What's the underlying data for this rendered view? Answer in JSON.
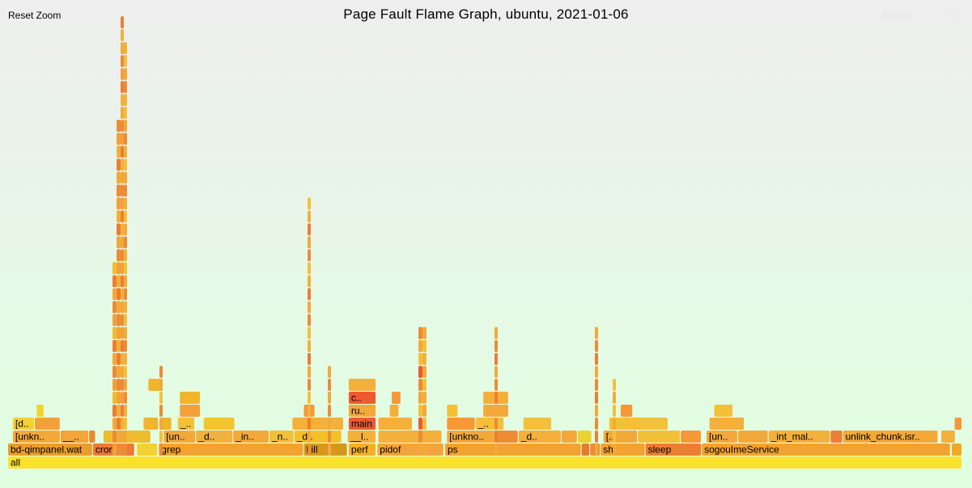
{
  "header": {
    "title": "Page Fault Flame Graph, ubuntu, 2021-01-06",
    "reset_zoom": "Reset Zoom",
    "search": "Search",
    "ic": "ic"
  },
  "chart_data": {
    "type": "flame graph",
    "title": "Page Fault Flame Graph, ubuntu, 2021-01-06",
    "levels_note": "depth 0 = bottom (all)",
    "frames": [
      {
        "name": "all",
        "depth": 0,
        "start": 0,
        "end": 1000,
        "color": "#fae12e"
      },
      {
        "name": "bd-qimpanel.watcher",
        "label": "bd-qimpanel.wat",
        "depth": 1,
        "start": 0,
        "end": 89,
        "color": "#e99d2c"
      },
      {
        "name": "cron",
        "depth": 1,
        "start": 89,
        "end": 133,
        "color": "#f07737"
      },
      {
        "name": "",
        "depth": 1,
        "start": 135,
        "end": 157,
        "color": "#f3d132"
      },
      {
        "name": "grep",
        "depth": 1,
        "start": 158,
        "end": 310,
        "color": "#f1a22f"
      },
      {
        "name": "kill",
        "depth": 1,
        "start": 310,
        "end": 356,
        "color": "#d6981a"
      },
      {
        "name": "perf",
        "depth": 1,
        "start": 357,
        "end": 386,
        "color": "#f5b025"
      },
      {
        "name": "pidof",
        "depth": 1,
        "start": 387,
        "end": 457,
        "color": "#f3a43a"
      },
      {
        "name": "ps",
        "depth": 1,
        "start": 458,
        "end": 601,
        "color": "#f1a22f"
      },
      {
        "name": "",
        "depth": 1,
        "start": 601,
        "end": 610,
        "color": "#e67a31"
      },
      {
        "name": "",
        "depth": 1,
        "start": 610,
        "end": 621,
        "color": "#ec8c36"
      },
      {
        "name": "sh",
        "depth": 1,
        "start": 621,
        "end": 668,
        "color": "#f1a22f"
      },
      {
        "name": "sleep",
        "depth": 1,
        "start": 668,
        "end": 727,
        "color": "#ec7e33"
      },
      {
        "name": "sogouImeService",
        "depth": 1,
        "start": 727,
        "end": 988,
        "color": "#f1a22f"
      },
      {
        "name": "",
        "depth": 1,
        "start": 989,
        "end": 1000,
        "color": "#eeaa22"
      },
      {
        "name": "[unknown]",
        "label": "[unkn..",
        "depth": 2,
        "start": 5,
        "end": 55,
        "color": "#f3a93a"
      },
      {
        "name": "__d",
        "label": "__..",
        "depth": 2,
        "start": 55,
        "end": 85,
        "color": "#f3a43a"
      },
      {
        "name": "",
        "depth": 2,
        "start": 85,
        "end": 92,
        "color": "#e88a30"
      },
      {
        "name": "",
        "depth": 2,
        "start": 100,
        "end": 150,
        "color": "#eebc2f"
      },
      {
        "name": "[unknown]",
        "label": "[un..",
        "depth": 2,
        "start": 163,
        "end": 197,
        "color": "#f3a93a"
      },
      {
        "name": "__d",
        "label": "_d..",
        "depth": 2,
        "start": 197,
        "end": 236,
        "color": "#f1b13d"
      },
      {
        "name": "__in",
        "label": "_in..",
        "depth": 2,
        "start": 236,
        "end": 274,
        "color": "#f3a93a"
      },
      {
        "name": "__n",
        "label": "_n..",
        "depth": 2,
        "start": 274,
        "end": 300,
        "color": "#f3c03a"
      },
      {
        "name": "__d",
        "label": "_d..",
        "depth": 2,
        "start": 300,
        "end": 350,
        "color": "#f3c02a"
      },
      {
        "name": "__l",
        "label": "__l..",
        "depth": 2,
        "start": 356,
        "end": 386,
        "color": "#f3b03a"
      },
      {
        "name": "",
        "depth": 2,
        "start": 388,
        "end": 455,
        "color": "#f3b03a"
      },
      {
        "name": "[unknown]",
        "label": "[unkno..",
        "depth": 2,
        "start": 460,
        "end": 512,
        "color": "#f3a93a"
      },
      {
        "name": "",
        "depth": 2,
        "start": 512,
        "end": 535,
        "color": "#ee8c36"
      },
      {
        "name": "__d",
        "label": "_d..",
        "depth": 2,
        "start": 535,
        "end": 580,
        "color": "#f3b03a"
      },
      {
        "name": "",
        "depth": 2,
        "start": 580,
        "end": 597,
        "color": "#f3a93a"
      },
      {
        "name": "",
        "depth": 2,
        "start": 597,
        "end": 612,
        "color": "#e9d330"
      },
      {
        "name": "[unknown]",
        "label": "[..",
        "depth": 2,
        "start": 624,
        "end": 660,
        "color": "#f3a93a"
      },
      {
        "name": "",
        "depth": 2,
        "start": 660,
        "end": 705,
        "color": "#f3c03a"
      },
      {
        "name": "",
        "depth": 2,
        "start": 705,
        "end": 727,
        "color": "#f49838"
      },
      {
        "name": "[unknown]",
        "label": "[un..",
        "depth": 2,
        "start": 732,
        "end": 765,
        "color": "#f3a93a"
      },
      {
        "name": "",
        "depth": 2,
        "start": 765,
        "end": 797,
        "color": "#f3a93a"
      },
      {
        "name": "_int_malloc",
        "label": "_int_mal..",
        "depth": 2,
        "start": 797,
        "end": 862,
        "color": "#f3b03a"
      },
      {
        "name": "",
        "depth": 2,
        "start": 862,
        "end": 875,
        "color": "#ec7e33"
      },
      {
        "name": "unlink_chunk.isra.0",
        "label": "unlink_chunk.isr..",
        "depth": 2,
        "start": 875,
        "end": 975,
        "color": "#f3a93a"
      },
      {
        "name": "",
        "depth": 2,
        "start": 978,
        "end": 993,
        "color": "#f3b03a"
      },
      {
        "name": "[d",
        "label": "[d..",
        "depth": 3,
        "start": 5,
        "end": 28,
        "color": "#f4d22f"
      },
      {
        "name": "",
        "depth": 3,
        "start": 28,
        "end": 55,
        "color": "#f4a03a"
      },
      {
        "name": "[unknown]",
        "label": "[..",
        "depth": 3,
        "start": 142,
        "end": 158,
        "color": "#f0b52a"
      },
      {
        "name": "",
        "depth": 3,
        "start": 160,
        "end": 172,
        "color": "#f0b52a"
      },
      {
        "name": "__d",
        "label": "_..",
        "depth": 3,
        "start": 178,
        "end": 196,
        "color": "#f3c03a"
      },
      {
        "name": "",
        "depth": 3,
        "start": 205,
        "end": 238,
        "color": "#f4c52f"
      },
      {
        "name": "",
        "depth": 3,
        "start": 298,
        "end": 352,
        "color": "#f3b03a"
      },
      {
        "name": "main",
        "depth": 3,
        "start": 357,
        "end": 386,
        "color": "#ec5a34"
      },
      {
        "name": "",
        "depth": 3,
        "start": 388,
        "end": 424,
        "color": "#f3b03a"
      },
      {
        "name": "",
        "depth": 3,
        "start": 460,
        "end": 490,
        "color": "#f49838"
      },
      {
        "name": "_",
        "label": "_..",
        "depth": 3,
        "start": 490,
        "end": 520,
        "color": "#f3c03a"
      },
      {
        "name": "",
        "depth": 3,
        "start": 540,
        "end": 570,
        "color": "#f3c03a"
      },
      {
        "name": "",
        "depth": 3,
        "start": 630,
        "end": 692,
        "color": "#f3c03a"
      },
      {
        "name": "",
        "depth": 3,
        "start": 735,
        "end": 772,
        "color": "#f3b03a"
      },
      {
        "name": "",
        "depth": 3,
        "start": 992,
        "end": 1000,
        "color": "#f49838"
      },
      {
        "name": "",
        "depth": 4,
        "start": 30,
        "end": 38,
        "color": "#f4d22f"
      },
      {
        "name": "",
        "depth": 4,
        "start": 180,
        "end": 202,
        "color": "#f4a03a"
      },
      {
        "name": "",
        "depth": 4,
        "start": 310,
        "end": 322,
        "color": "#f49838"
      },
      {
        "name": "ru",
        "label": "ru..",
        "depth": 4,
        "start": 357,
        "end": 386,
        "color": "#f3a93a"
      },
      {
        "name": "",
        "depth": 4,
        "start": 400,
        "end": 410,
        "color": "#f3b03a"
      },
      {
        "name": "",
        "depth": 4,
        "start": 460,
        "end": 472,
        "color": "#f3c03a"
      },
      {
        "name": "",
        "depth": 4,
        "start": 498,
        "end": 525,
        "color": "#f3a93a"
      },
      {
        "name": "",
        "depth": 4,
        "start": 642,
        "end": 655,
        "color": "#f49838"
      },
      {
        "name": "",
        "depth": 4,
        "start": 740,
        "end": 760,
        "color": "#f3c03a"
      },
      {
        "name": "c",
        "label": "c..",
        "depth": 5,
        "start": 357,
        "end": 386,
        "color": "#f05a30"
      },
      {
        "name": "",
        "depth": 5,
        "start": 498,
        "end": 525,
        "color": "#f3b03a"
      },
      {
        "name": "",
        "depth": 5,
        "start": 180,
        "end": 202,
        "color": "#f0b52a"
      },
      {
        "name": "",
        "depth": 5,
        "start": 402,
        "end": 412,
        "color": "#f49838"
      },
      {
        "name": "",
        "depth": 6,
        "start": 357,
        "end": 386,
        "color": "#f3b03a"
      },
      {
        "name": "",
        "depth": 6,
        "start": 147,
        "end": 162,
        "color": "#f0b52a"
      }
    ],
    "towers": [
      {
        "x": 146,
        "w": 6,
        "top": 3,
        "colors": [
          "#f0b52a",
          "#f4a03a",
          "#ec8c36"
        ]
      },
      {
        "x": 153,
        "w": 4,
        "top": 4,
        "colors": [
          "#f3a93a",
          "#ec8c36"
        ]
      },
      {
        "x": 139,
        "w": 5,
        "top": 15,
        "colors": [
          "#eebc2f",
          "#f4a03a",
          "#ec8c36",
          "#f3a93a",
          "#ec7e33"
        ]
      },
      {
        "x": 144,
        "w": 5,
        "top": 26,
        "colors": [
          "#f4a03a",
          "#ec8c36",
          "#f3a93a",
          "#ec7e33",
          "#f3b03a"
        ]
      },
      {
        "x": 149,
        "w": 4,
        "top": 34,
        "colors": [
          "#f4a03a",
          "#ec8c36",
          "#f3a93a",
          "#f3b03a",
          "#ec7e33"
        ]
      },
      {
        "x": 153,
        "w": 4,
        "top": 32,
        "colors": [
          "#f3b03a",
          "#ec8c36",
          "#f3a93a",
          "#f3c03a"
        ]
      },
      {
        "x": 197,
        "w": 4,
        "top": 7,
        "colors": [
          "#f3a93a",
          "#ec8c36",
          "#f3c03a"
        ]
      },
      {
        "x": 380,
        "w": 4,
        "top": 20,
        "colors": [
          "#f3c03a",
          "#ec8c36",
          "#f3a93a",
          "#ec7e33",
          "#f3b03a"
        ]
      },
      {
        "x": 405,
        "w": 4,
        "top": 7,
        "colors": [
          "#ec8c36",
          "#f3a93a"
        ]
      },
      {
        "x": 517,
        "w": 5,
        "top": 10,
        "colors": [
          "#f3c03a",
          "#f3a93a",
          "#ec8c36",
          "#ec5a34"
        ]
      },
      {
        "x": 522,
        "w": 5,
        "top": 10,
        "colors": [
          "#f3c03a",
          "#f3a93a",
          "#f3b03a"
        ]
      },
      {
        "x": 611,
        "w": 4,
        "top": 10,
        "colors": [
          "#ec8c36",
          "#f3a93a",
          "#ec7e33"
        ]
      },
      {
        "x": 735,
        "w": 4,
        "top": 10,
        "colors": [
          "#ec8c36",
          "#f3a93a",
          "#ec7e33"
        ]
      },
      {
        "x": 757,
        "w": 4,
        "top": 6,
        "colors": [
          "#f3c03a",
          "#f3a93a"
        ]
      }
    ]
  }
}
